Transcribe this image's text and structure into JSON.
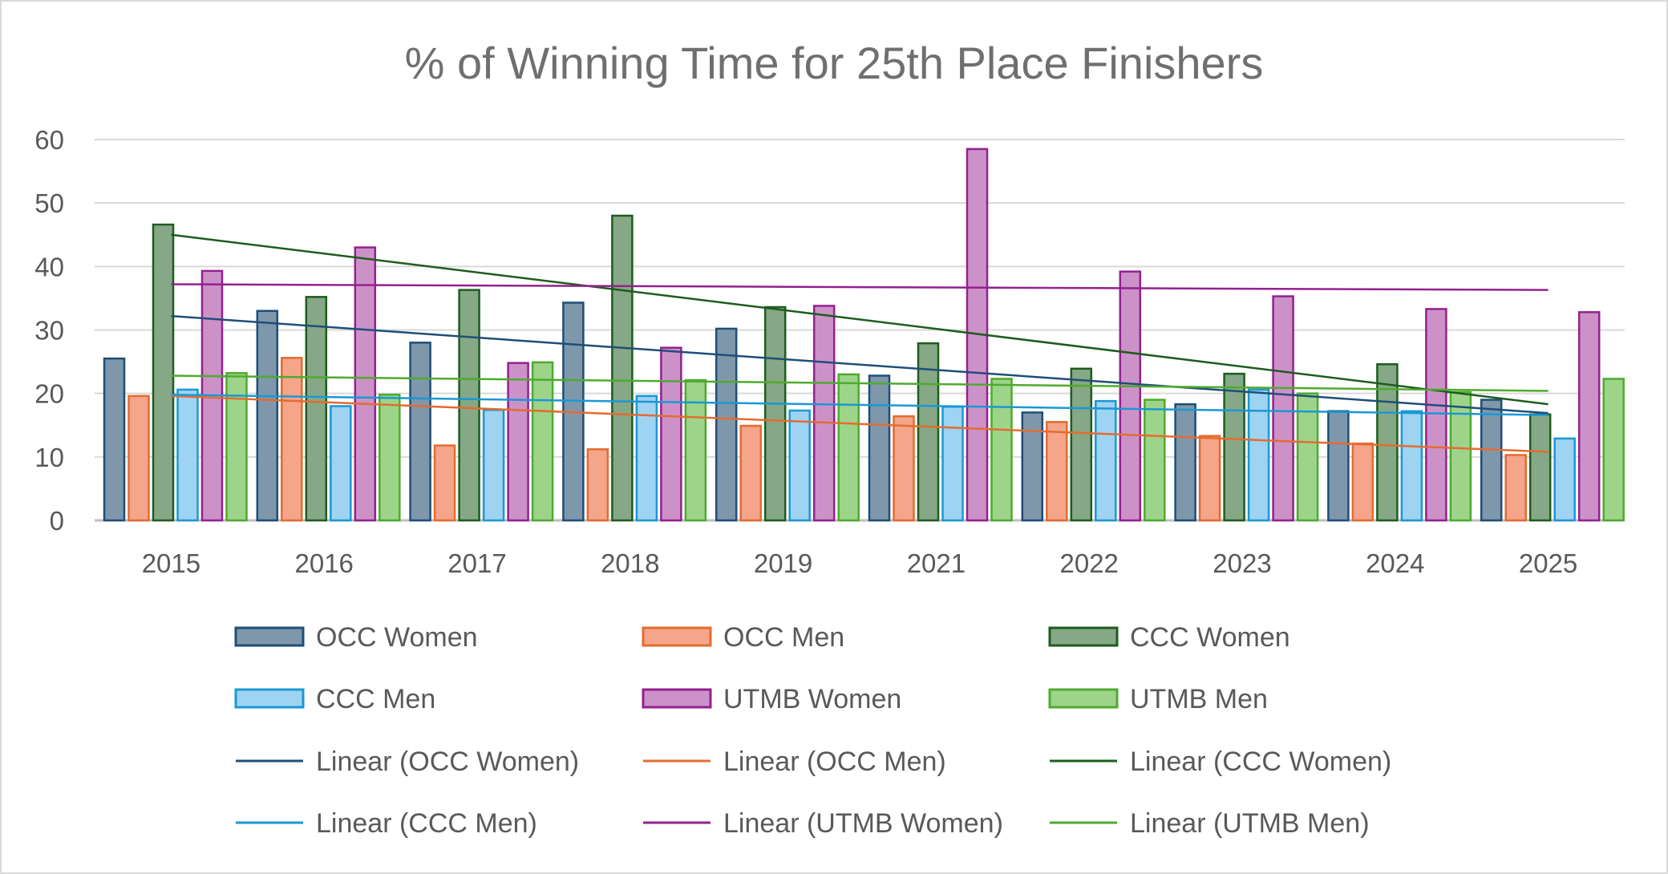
{
  "chart_data": {
    "type": "bar",
    "title": "% of Winning Time for 25th Place Finishers",
    "xlabel": "",
    "ylabel": "",
    "ylim": [
      0,
      60
    ],
    "yticks": [
      0,
      10,
      20,
      30,
      40,
      50,
      60
    ],
    "grid": true,
    "legend_position": "bottom",
    "categories": [
      "2015",
      "2016",
      "2017",
      "2018",
      "2019",
      "2021",
      "2022",
      "2023",
      "2024",
      "2025"
    ],
    "series": [
      {
        "name": "OCC Women",
        "color": "#7f97ab",
        "border": "#1f4e79",
        "values": [
          25.5,
          33.0,
          28.0,
          34.3,
          30.2,
          22.8,
          17.0,
          18.3,
          17.2,
          19.0
        ]
      },
      {
        "name": "OCC Men",
        "color": "#f4a58a",
        "border": "#e46c2f",
        "values": [
          19.6,
          25.6,
          11.8,
          11.2,
          14.9,
          16.4,
          15.5,
          13.3,
          12.1,
          10.3
        ]
      },
      {
        "name": "CCC Women",
        "color": "#86a886",
        "border": "#1e5c1e",
        "values": [
          46.6,
          35.2,
          36.3,
          48.0,
          33.6,
          27.9,
          23.9,
          23.1,
          24.6,
          16.7
        ]
      },
      {
        "name": "CCC Men",
        "color": "#9fd3f2",
        "border": "#1a98d5",
        "values": [
          20.6,
          18.0,
          17.4,
          19.6,
          17.3,
          17.9,
          18.8,
          20.6,
          17.2,
          12.9
        ]
      },
      {
        "name": "UTMB Women",
        "color": "#cc92c8",
        "border": "#94208f",
        "values": [
          39.3,
          43.0,
          24.8,
          27.2,
          33.8,
          58.5,
          39.2,
          35.3,
          33.3,
          32.8
        ]
      },
      {
        "name": "UTMB Men",
        "color": "#9dd48a",
        "border": "#4eab2e",
        "values": [
          23.2,
          19.8,
          24.9,
          22.1,
          23.0,
          22.3,
          19.0,
          20.0,
          20.2,
          22.3
        ]
      }
    ],
    "trendlines": [
      {
        "name": "Linear (OCC Women)",
        "color": "#1f4e79",
        "start": 32.2,
        "end": 16.9
      },
      {
        "name": "Linear (OCC Men)",
        "color": "#e46c2f",
        "start": 19.6,
        "end": 10.8
      },
      {
        "name": "Linear (CCC Women)",
        "color": "#1e5c1e",
        "start": 45.0,
        "end": 18.3
      },
      {
        "name": "Linear (CCC Men)",
        "color": "#1a98d5",
        "start": 19.8,
        "end": 16.6
      },
      {
        "name": "Linear (UTMB Women)",
        "color": "#94208f",
        "start": 37.2,
        "end": 36.3
      },
      {
        "name": "Linear (UTMB Men)",
        "color": "#4eab2e",
        "start": 22.8,
        "end": 20.4
      }
    ]
  }
}
